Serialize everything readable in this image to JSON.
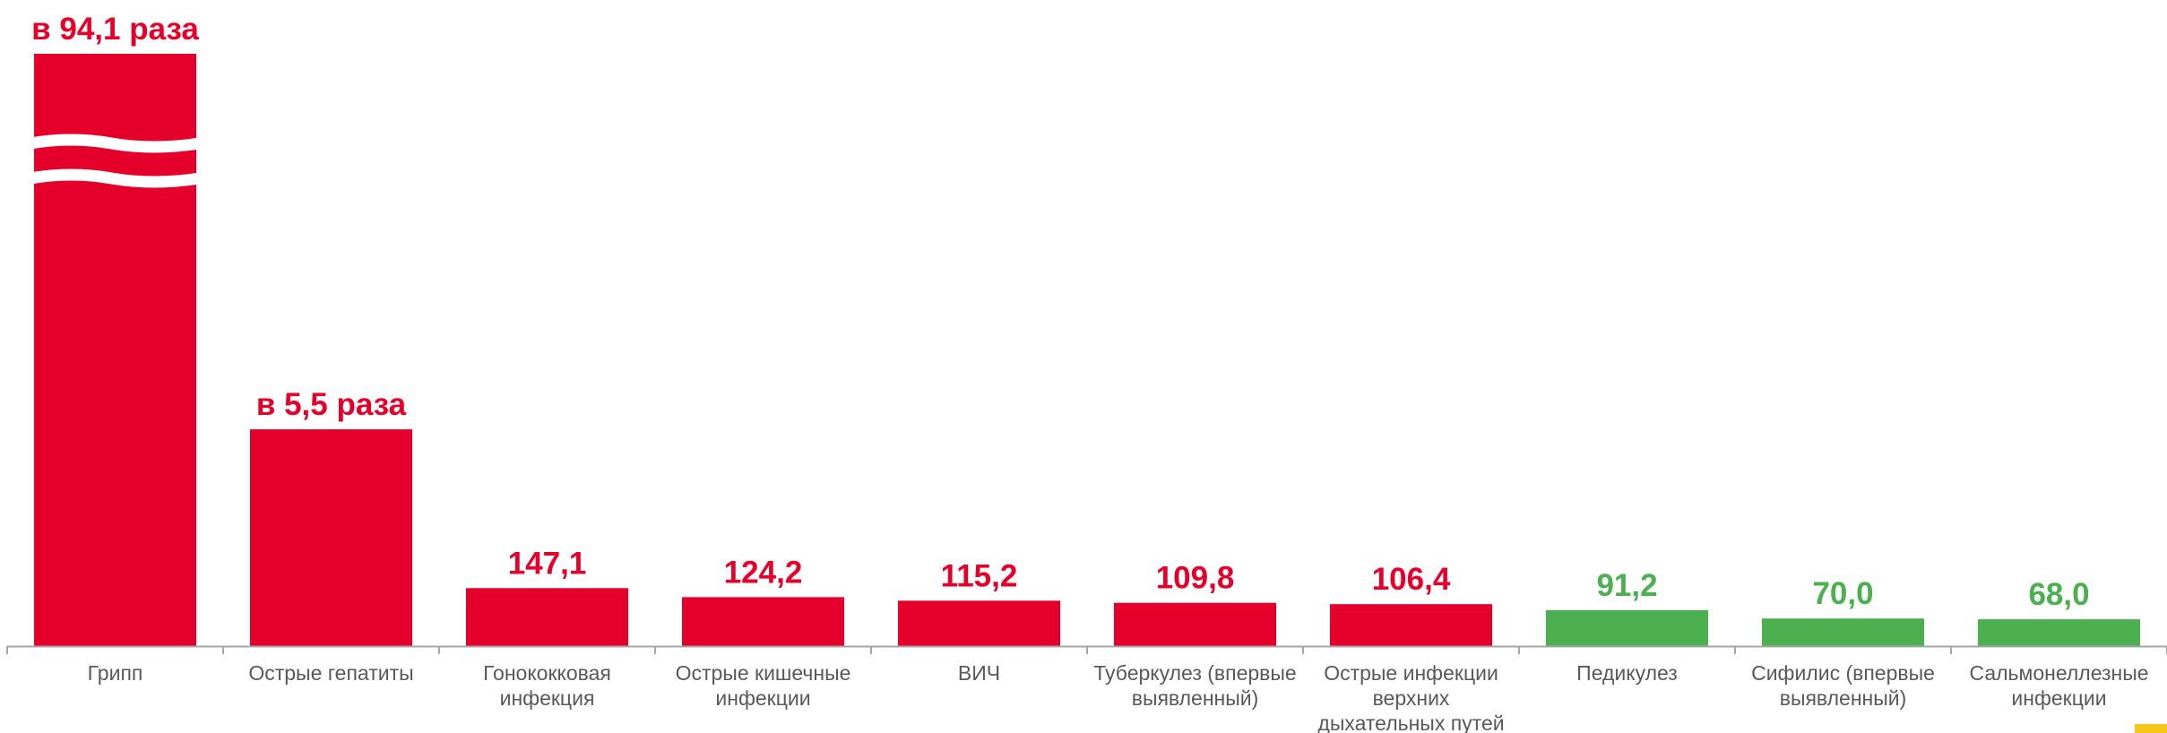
{
  "chart_data": {
    "type": "bar",
    "categories": [
      [
        "Грипп"
      ],
      [
        "Острые гепатиты"
      ],
      [
        "Гонококковая",
        "инфекция"
      ],
      [
        "Острые кишечные",
        "инфекции"
      ],
      [
        "ВИЧ"
      ],
      [
        "Туберкулез (впервые",
        "выявленный)"
      ],
      [
        "Острые инфекции",
        "верхних",
        "дыхательных путей"
      ],
      [
        "Педикулез"
      ],
      [
        "Сифилис (впервые",
        "выявленный)"
      ],
      [
        "Сальмонеллезные",
        "инфекции"
      ]
    ],
    "values": [
      9410,
      550,
      147.1,
      124.2,
      115.2,
      109.8,
      106.4,
      91.2,
      70.0,
      68.0
    ],
    "data_labels": [
      "в 94,1 раза",
      "в 5,5 раза",
      "147,1",
      "124,2",
      "115,2",
      "109,8",
      "106,4",
      "91,2",
      "70,0",
      "68,0"
    ],
    "axis_breaks": [
      true,
      false,
      false,
      false,
      false,
      false,
      false,
      false,
      false,
      false
    ],
    "bar_colors": [
      "#e4002b",
      "#e4002b",
      "#e4002b",
      "#e4002b",
      "#e4002b",
      "#e4002b",
      "#e4002b",
      "#4caf50",
      "#4caf50",
      "#4caf50"
    ],
    "colors": {
      "above_100": "#e4002b",
      "below_100": "#4caf50",
      "axis": "#a6a6a6",
      "labels": "#595959",
      "corner": "#f5c518"
    },
    "display_cap": 700,
    "grid": false,
    "legend": "none"
  }
}
